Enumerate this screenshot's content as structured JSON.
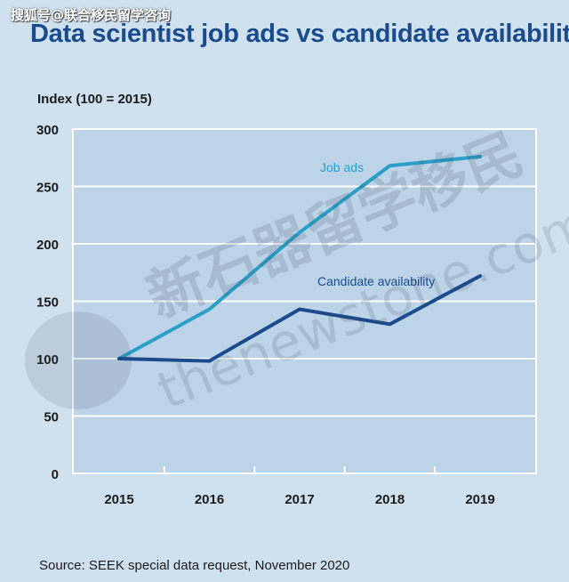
{
  "watermark": {
    "top_text": "搜狐号@联合移民留学咨询",
    "overlay_text": "新石器留学移民",
    "overlay_url": "thenewstone.com"
  },
  "colors": {
    "background": "#cfe1ee",
    "plot_background": "#bcd3e8",
    "grid": "#ffffff",
    "title": "#1a4b8c",
    "job_ads": "#2aa0c9",
    "candidate_availability": "#1a4b8c"
  },
  "chart_data": {
    "type": "line",
    "title": "Data scientist job ads vs candidate availability",
    "ylabel": "Index (100 = 2015)",
    "source": "Source: SEEK special data request, November 2020",
    "x": [
      "2015",
      "2016",
      "2017",
      "2018",
      "2019"
    ],
    "ylim": [
      0,
      300
    ],
    "yticks": [
      "300",
      "250",
      "200",
      "150",
      "100",
      "50",
      "0"
    ],
    "grid": true,
    "series": [
      {
        "name": "Job ads",
        "values": [
          100,
          143,
          210,
          268,
          276
        ]
      },
      {
        "name": "Candidate availability",
        "values": [
          100,
          98,
          143,
          130,
          172
        ]
      }
    ]
  }
}
